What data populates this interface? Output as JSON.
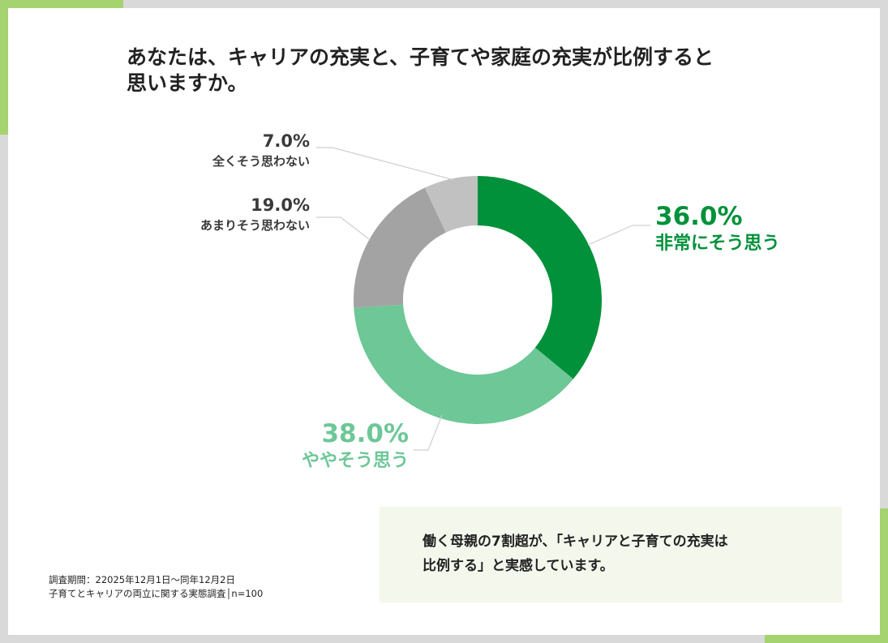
{
  "title": {
    "line1": "あなたは、キャリアの充実と、子育てや家庭の充実が比例すると",
    "line2": "思いますか。"
  },
  "chart_data": {
    "type": "pie",
    "categories": [
      "非常にそう思う",
      "ややそう思う",
      "あまりそう思わない",
      "全くそう思わない"
    ],
    "values": [
      36.0,
      38.0,
      19.0,
      7.0
    ],
    "value_labels": [
      "36.0%",
      "38.0%",
      "19.0%",
      "7.0%"
    ],
    "colors": [
      "#00913a",
      "#6dc796",
      "#a3a3a3",
      "#c1c1c1"
    ],
    "start": "12 o'clock, clockwise",
    "legend": "none"
  },
  "callout": {
    "line1": "働く母親の7割超が、「キャリアと子育ての充実は",
    "line2": "比例する」と実感しています。"
  },
  "note": {
    "line1": "調査期間：22025年12月1日～同年12月2日",
    "line2": "子育てとキャリアの両立に関する実態調査│n=100"
  }
}
